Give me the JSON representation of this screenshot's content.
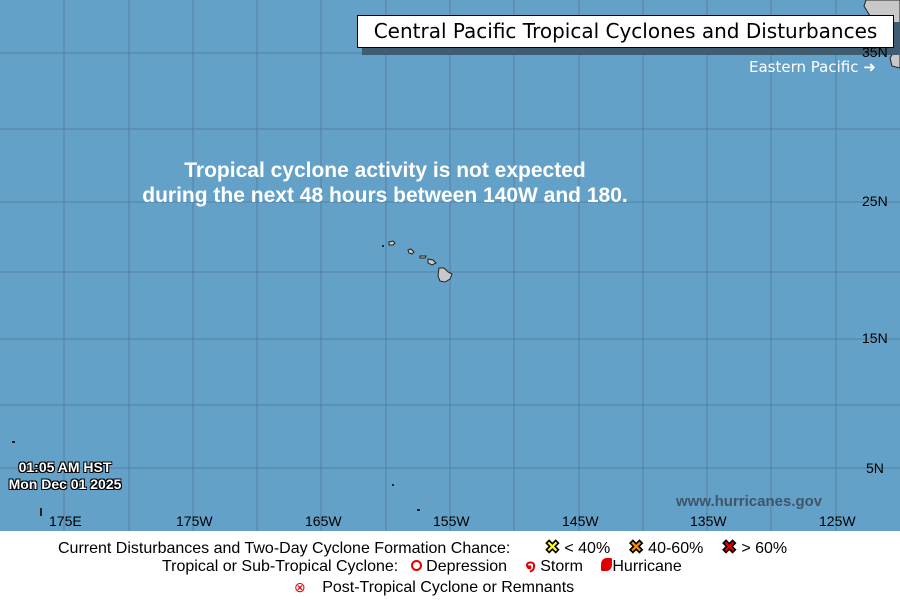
{
  "title": "Central Pacific Tropical Cyclones and Disturbances",
  "eastern_pacific_link": "Eastern Pacific ➜",
  "message_line1": "Tropical cyclone activity is not expected",
  "message_line2": "during the next 48 hours between 140W and 180.",
  "timestamp_time": "01:05 AM HST",
  "timestamp_date": "Mon Dec 01 2025",
  "website": "www.hurricanes.gov",
  "lon_labels": [
    "175E",
    "175W",
    "165W",
    "155W",
    "145W",
    "135W",
    "125W"
  ],
  "lat_labels": [
    "35N",
    "25N",
    "15N",
    "5N"
  ],
  "legend": {
    "disturbances_label": "Current Disturbances and Two-Day Cyclone Formation Chance:",
    "low": "< 40%",
    "medium": "40-60%",
    "high": "> 60%",
    "low_color": "#ffff00",
    "medium_color": "#ff8c00",
    "high_color": "#e00000",
    "cyclone_label": "Tropical or Sub-Tropical Cyclone:",
    "depression": "Depression",
    "storm": "Storm",
    "hurricane": "Hurricane",
    "post_tropical": "Post-Tropical Cyclone or Remnants"
  },
  "colors": {
    "ocean": "#64a1c8",
    "land": "#c8c8c8",
    "grid": "#4f7894"
  }
}
